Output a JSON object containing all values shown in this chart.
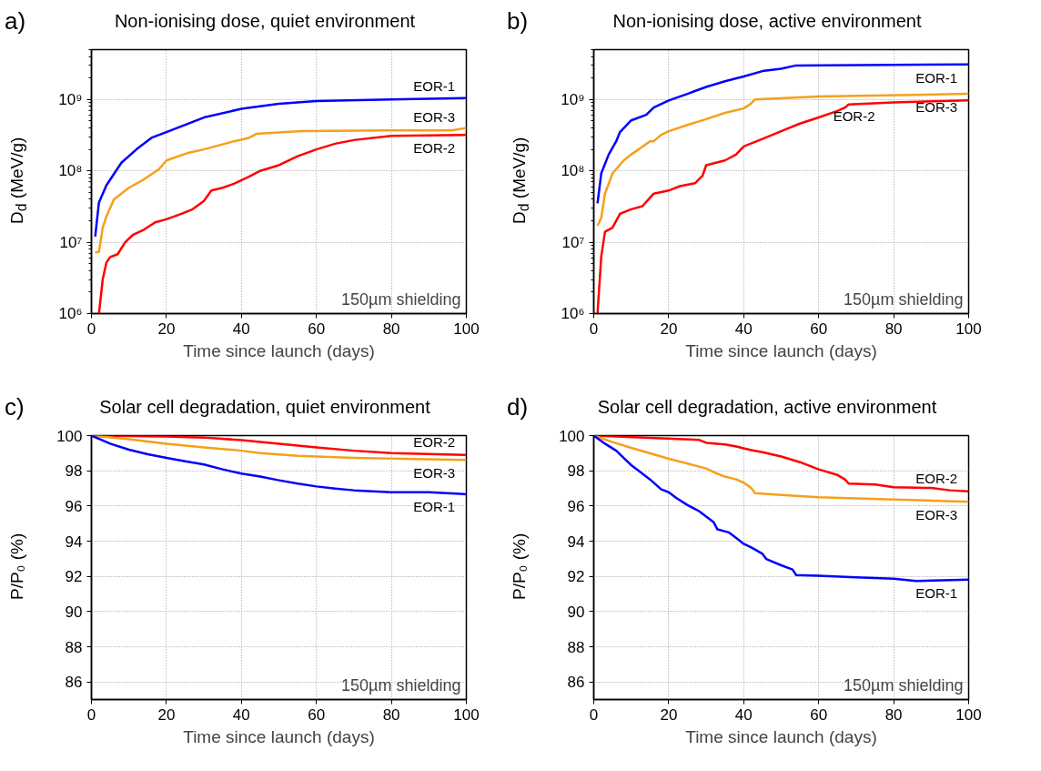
{
  "chart_data": [
    {
      "type": "line",
      "title": "Non-ionising dose, quiet environment",
      "xlabel": "Time since launch (days)",
      "ylabel": "D$_{d}$ (MeV/g)",
      "log": true,
      "grid": true,
      "xlim": [
        0,
        100
      ],
      "ylim": [
        1000000,
        5000000000
      ],
      "xticks": [
        0,
        20,
        40,
        60,
        80,
        100
      ],
      "yticks": [
        {
          "value": 1000000,
          "label": "10⁶"
        },
        {
          "value": 10000000,
          "label": "10⁷"
        },
        {
          "value": 100000000,
          "label": "10⁸"
        },
        {
          "value": 1000000000,
          "label": "10⁹"
        }
      ],
      "annotations": [
        "a)",
        "150µm shielding"
      ],
      "series": [
        {
          "name": "EOR-1",
          "color": "#0000ff",
          "x": [
            1,
            2,
            4,
            8,
            12,
            16,
            20,
            30,
            40,
            50,
            60,
            80,
            100
          ],
          "values": [
            12000000.0,
            36000000.0,
            63000000.0,
            130000000.0,
            200000000.0,
            290000000.0,
            350000000.0,
            560000000.0,
            740000000.0,
            870000000.0,
            950000000.0,
            1000000000.0,
            1050000000.0
          ]
        },
        {
          "name": "EOR-3",
          "color": "#f5a01a",
          "x": [
            1,
            2,
            3,
            4,
            6,
            10,
            14,
            18,
            20,
            26,
            30,
            38,
            42,
            44,
            56,
            80,
            96,
            100
          ],
          "values": [
            7200000.0,
            7300000.0,
            16000000.0,
            23000000.0,
            40000000.0,
            58000000.0,
            76000000.0,
            105000000.0,
            140000000.0,
            180000000.0,
            200000000.0,
            260000000.0,
            290000000.0,
            330000000.0,
            360000000.0,
            370000000.0,
            370000000.0,
            400000000.0
          ]
        },
        {
          "name": "EOR-2",
          "color": "#ff0000",
          "x": [
            2,
            3,
            4,
            5,
            7,
            9,
            11,
            14,
            17,
            20,
            24,
            27,
            30,
            32,
            35,
            38,
            42,
            45,
            50,
            55,
            60,
            65,
            70,
            80,
            100
          ],
          "values": [
            1000000.0,
            3000000.0,
            5200000.0,
            6200000.0,
            6800000.0,
            10000000.0,
            12600000.0,
            15000000.0,
            19000000.0,
            21000000.0,
            25000000.0,
            29000000.0,
            38000000.0,
            53000000.0,
            58000000.0,
            66000000.0,
            83000000.0,
            100000000.0,
            120000000.0,
            160000000.0,
            200000000.0,
            240000000.0,
            270000000.0,
            310000000.0,
            320000000.0
          ]
        }
      ]
    },
    {
      "type": "line",
      "title": "Non-ionising dose, active environment",
      "xlabel": "Time since launch (days)",
      "ylabel": "D$_{d}$ (MeV/g)",
      "log": true,
      "grid": true,
      "xlim": [
        0,
        100
      ],
      "ylim": [
        1000000,
        5000000000
      ],
      "xticks": [
        0,
        20,
        40,
        60,
        80,
        100
      ],
      "yticks": [
        {
          "value": 1000000,
          "label": "10⁶"
        },
        {
          "value": 10000000,
          "label": "10⁷"
        },
        {
          "value": 100000000,
          "label": "10⁸"
        },
        {
          "value": 1000000000,
          "label": "10⁹"
        }
      ],
      "annotations": [
        "b)",
        "150µm shielding"
      ],
      "series": [
        {
          "name": "EOR-1",
          "color": "#0000ff",
          "x": [
            1,
            2,
            4,
            6,
            7,
            10,
            14,
            16,
            20,
            25,
            30,
            35,
            40,
            45,
            50,
            54,
            100
          ],
          "values": [
            35000000.0,
            92000000.0,
            170000000.0,
            260000000.0,
            350000000.0,
            510000000.0,
            610000000.0,
            770000000.0,
            970000000.0,
            1200000000.0,
            1500000000.0,
            1800000000.0,
            2100000000.0,
            2500000000.0,
            2700000000.0,
            3000000000.0,
            3100000000.0
          ]
        },
        {
          "name": "EOR-3",
          "color": "#f5a01a",
          "x": [
            1,
            2,
            3,
            5,
            8,
            10,
            12,
            15,
            16,
            18,
            20,
            25,
            30,
            35,
            40,
            42,
            43,
            60,
            100
          ],
          "values": [
            17000000.0,
            22000000.0,
            48000000.0,
            92000000.0,
            140000000.0,
            170000000.0,
            200000000.0,
            260000000.0,
            260000000.0,
            320000000.0,
            360000000.0,
            440000000.0,
            530000000.0,
            650000000.0,
            750000000.0,
            880000000.0,
            1000000000.0,
            1100000000.0,
            1200000000.0
          ]
        },
        {
          "name": "EOR-2",
          "color": "#ff0000",
          "x": [
            1,
            2,
            3,
            5,
            7,
            10,
            13,
            16,
            20,
            23,
            27,
            29,
            30,
            35,
            38,
            40,
            45,
            50,
            55,
            60,
            65,
            67,
            68,
            80,
            100
          ],
          "values": [
            1000000.0,
            6300000.0,
            14000000.0,
            16000000.0,
            25000000.0,
            29000000.0,
            32000000.0,
            48000000.0,
            53000000.0,
            61000000.0,
            67000000.0,
            85000000.0,
            120000000.0,
            140000000.0,
            170000000.0,
            220000000.0,
            280000000.0,
            360000000.0,
            460000000.0,
            560000000.0,
            690000000.0,
            770000000.0,
            850000000.0,
            910000000.0,
            970000000.0
          ]
        }
      ]
    },
    {
      "type": "line",
      "title": "Solar cell degradation, quiet environment",
      "xlabel": "Time since launch (days)",
      "ylabel": "P/P₀ (%)",
      "grid": true,
      "xlim": [
        0,
        100
      ],
      "ylim": [
        85,
        100
      ],
      "xticks": [
        0,
        20,
        40,
        60,
        80,
        100
      ],
      "yticks": [
        86,
        88,
        90,
        92,
        94,
        96,
        98,
        100
      ],
      "annotations": [
        "c)",
        "150µm shielding"
      ],
      "series": [
        {
          "name": "EOR-2",
          "color": "#ff0000",
          "x": [
            0,
            20,
            30,
            40,
            50,
            60,
            70,
            80,
            100
          ],
          "values": [
            100,
            99.95,
            99.89,
            99.74,
            99.54,
            99.33,
            99.14,
            99.0,
            98.9
          ]
        },
        {
          "name": "EOR-3",
          "color": "#f5a01a",
          "x": [
            0,
            10,
            20,
            30,
            40,
            45,
            55,
            70,
            100
          ],
          "values": [
            100,
            99.79,
            99.54,
            99.33,
            99.14,
            99.0,
            98.85,
            98.73,
            98.62
          ]
        },
        {
          "name": "EOR-1",
          "color": "#0000ff",
          "x": [
            0,
            5,
            10,
            15,
            20,
            25,
            30,
            35,
            40,
            45,
            50,
            55,
            60,
            65,
            70,
            80,
            90,
            100
          ],
          "values": [
            100,
            99.54,
            99.2,
            98.94,
            98.73,
            98.54,
            98.36,
            98.08,
            97.84,
            97.67,
            97.46,
            97.27,
            97.11,
            96.99,
            96.89,
            96.78,
            96.78,
            96.67
          ]
        }
      ]
    },
    {
      "type": "line",
      "title": "Solar cell degradation, active environment",
      "xlabel": "Time since launch (days)",
      "ylabel": "P/P₀ (%)",
      "grid": true,
      "xlim": [
        0,
        100
      ],
      "ylim": [
        85,
        100
      ],
      "xticks": [
        0,
        20,
        40,
        60,
        80,
        100
      ],
      "yticks": [
        86,
        88,
        90,
        92,
        94,
        96,
        98,
        100
      ],
      "annotations": [
        "d)",
        "150µm shielding"
      ],
      "series": [
        {
          "name": "EOR-2",
          "color": "#ff0000",
          "x": [
            0,
            15,
            28,
            30,
            35,
            38,
            42,
            45,
            50,
            55,
            60,
            65,
            67,
            68,
            75,
            80,
            90,
            95,
            100
          ],
          "values": [
            100,
            99.87,
            99.76,
            99.59,
            99.5,
            99.38,
            99.17,
            99.06,
            98.81,
            98.49,
            98.08,
            97.76,
            97.51,
            97.27,
            97.22,
            97.06,
            97.02,
            96.89,
            96.83
          ]
        },
        {
          "name": "EOR-3",
          "color": "#f5a01a",
          "x": [
            0,
            5,
            10,
            14,
            18,
            20,
            25,
            30,
            32,
            35,
            38,
            40,
            42,
            43,
            50,
            60,
            80,
            100
          ],
          "values": [
            100,
            99.63,
            99.3,
            99.06,
            98.81,
            98.68,
            98.41,
            98.13,
            97.92,
            97.67,
            97.51,
            97.32,
            97.02,
            96.73,
            96.62,
            96.5,
            96.37,
            96.24
          ]
        },
        {
          "name": "EOR-1",
          "color": "#0000ff",
          "x": [
            0,
            3,
            6,
            8,
            10,
            12,
            15,
            18,
            20,
            22,
            25,
            28,
            30,
            32,
            33,
            36,
            38,
            40,
            42,
            45,
            46,
            50,
            53,
            54,
            60,
            70,
            80,
            86,
            100
          ],
          "values": [
            100,
            99.54,
            99.14,
            98.73,
            98.32,
            98.0,
            97.51,
            96.94,
            96.78,
            96.46,
            96.05,
            95.72,
            95.4,
            95.07,
            94.67,
            94.5,
            94.18,
            93.85,
            93.64,
            93.28,
            92.99,
            92.63,
            92.39,
            92.07,
            92.03,
            91.95,
            91.87,
            91.74,
            91.82
          ]
        }
      ]
    }
  ]
}
